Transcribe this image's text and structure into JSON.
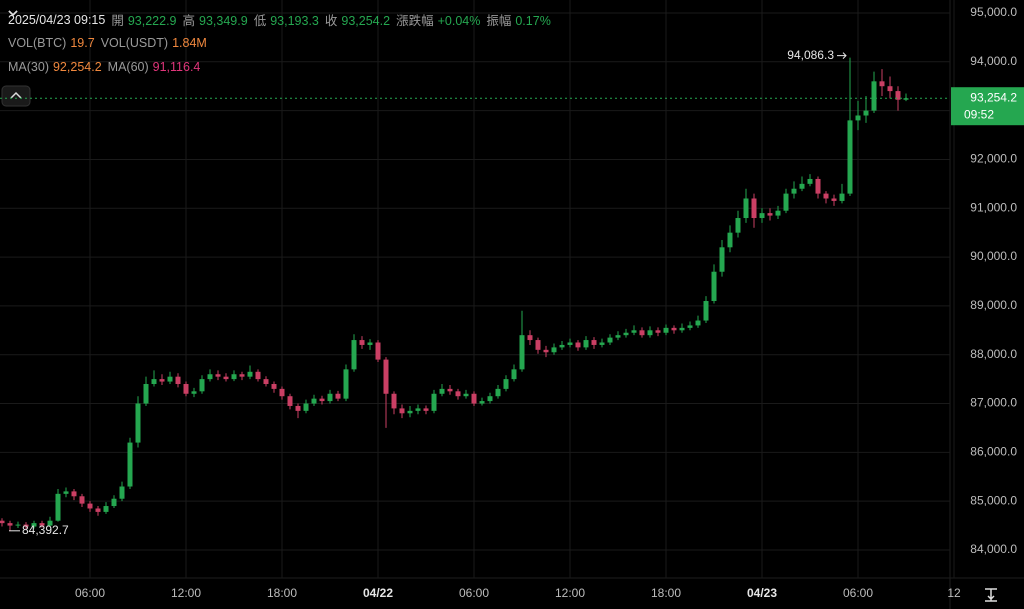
{
  "chart_data": {
    "type": "candlestick",
    "legend_rows": [
      {
        "title": "2025/04/23 09:15",
        "items": [
          {
            "label": "開",
            "value": "93,222.9",
            "color": "#25a750"
          },
          {
            "label": "高",
            "value": "93,349.9",
            "color": "#25a750"
          },
          {
            "label": "低",
            "value": "93,193.3",
            "color": "#25a750"
          },
          {
            "label": "收",
            "value": "93,254.2",
            "color": "#25a750"
          },
          {
            "label": "漲跌幅",
            "value": "+0.04%",
            "color": "#25a750"
          },
          {
            "label": "振幅",
            "value": "0.17%",
            "color": "#25a750"
          }
        ]
      },
      {
        "items": [
          {
            "label": "VOL(BTC)",
            "value": "19.7",
            "color": "#f0883e"
          },
          {
            "label": "VOL(USDT)",
            "value": "1.84M",
            "color": "#f0883e"
          }
        ]
      },
      {
        "items": [
          {
            "label": "MA(30)",
            "value": "92,254.2",
            "color": "#f0883e"
          },
          {
            "label": "MA(60)",
            "value": "91,116.4",
            "color": "#e0357a"
          }
        ]
      }
    ],
    "up_color": "#25a750",
    "down_color": "#ca3f64",
    "grid": true,
    "categories": [
      null,
      null,
      null,
      null,
      null,
      null,
      null,
      null,
      null,
      null,
      null,
      "06:00",
      null,
      null,
      null,
      null,
      null,
      null,
      null,
      null,
      null,
      null,
      null,
      "12:00",
      null,
      null,
      null,
      null,
      null,
      null,
      null,
      null,
      null,
      null,
      null,
      "18:00",
      null,
      null,
      null,
      null,
      null,
      null,
      null,
      null,
      null,
      null,
      null,
      "04/22",
      null,
      null,
      null,
      null,
      null,
      null,
      null,
      null,
      null,
      null,
      null,
      "06:00",
      null,
      null,
      null,
      null,
      null,
      null,
      null,
      null,
      null,
      null,
      null,
      "12:00",
      null,
      null,
      null,
      null,
      null,
      null,
      null,
      null,
      null,
      null,
      null,
      "18:00",
      null,
      null,
      null,
      null,
      null,
      null,
      null,
      null,
      null,
      null,
      null,
      "04/23",
      null,
      null,
      null,
      null,
      null,
      null,
      null,
      null,
      null,
      null,
      null,
      "06:00",
      null,
      null,
      null,
      null,
      null,
      null,
      null,
      null,
      null,
      null,
      null,
      "12"
    ],
    "open": [
      84600,
      84550,
      84500,
      84520,
      84480,
      84550,
      84500,
      84600,
      85150,
      85200,
      85100,
      84950,
      84850,
      84780,
      84900,
      85050,
      85300,
      86200,
      87000,
      87400,
      87500,
      87450,
      87550,
      87400,
      87200,
      87250,
      87500,
      87600,
      87550,
      87500,
      87600,
      87550,
      87650,
      87500,
      87400,
      87300,
      87150,
      86950,
      86850,
      87000,
      87100,
      87050,
      87200,
      87100,
      87700,
      88300,
      88200,
      88250,
      87900,
      87200,
      86900,
      86800,
      86850,
      86900,
      86850,
      87200,
      87300,
      87250,
      87150,
      87200,
      87000,
      87050,
      87150,
      87300,
      87500,
      87700,
      88400,
      88300,
      88100,
      88050,
      88150,
      88200,
      88250,
      88150,
      88300,
      88200,
      88250,
      88350,
      88400,
      88450,
      88500,
      88400,
      88500,
      88450,
      88550,
      88500,
      88550,
      88600,
      88700,
      89100,
      89700,
      90200,
      90500,
      90800,
      91200,
      90800,
      90900,
      90850,
      90950,
      91300,
      91400,
      91500,
      91600,
      91300,
      91200,
      91150,
      91300,
      92800,
      92900,
      93000,
      93600,
      93500,
      93400,
      93222.9,
      null,
      null,
      null,
      null,
      null,
      null
    ],
    "high": [
      84650,
      84600,
      84580,
      84570,
      84600,
      84600,
      84680,
      85250,
      85280,
      85250,
      85150,
      85000,
      84900,
      84980,
      85120,
      85400,
      86300,
      87150,
      87550,
      87680,
      87600,
      87650,
      87620,
      87450,
      87320,
      87580,
      87700,
      87680,
      87620,
      87680,
      87650,
      87780,
      87700,
      87560,
      87450,
      87350,
      87200,
      87000,
      87080,
      87180,
      87160,
      87280,
      87260,
      87800,
      88420,
      88380,
      88320,
      88300,
      87950,
      87250,
      86980,
      86950,
      86980,
      86960,
      87280,
      87400,
      87380,
      87300,
      87280,
      87250,
      87120,
      87220,
      87380,
      87580,
      87800,
      88900,
      88500,
      88350,
      88180,
      88230,
      88280,
      88330,
      88300,
      88380,
      88360,
      88330,
      88420,
      88480,
      88530,
      88600,
      88560,
      88580,
      88560,
      88620,
      88600,
      88640,
      88680,
      88800,
      89200,
      89850,
      90350,
      90650,
      90950,
      91400,
      91300,
      91000,
      91000,
      91050,
      91400,
      91550,
      91650,
      91700,
      91650,
      91350,
      91280,
      91500,
      94086.3,
      93200,
      93300,
      93800,
      93850,
      93700,
      93500,
      93349.9,
      null,
      null,
      null,
      null,
      null,
      null
    ],
    "low": [
      84480,
      84392.7,
      84450,
      84430,
      84440,
      84460,
      84470,
      84580,
      85080,
      85020,
      84880,
      84780,
      84700,
      84740,
      84860,
      85000,
      85250,
      86100,
      86950,
      87350,
      87380,
      87400,
      87330,
      87150,
      87130,
      87200,
      87450,
      87480,
      87450,
      87460,
      87480,
      87500,
      87450,
      87350,
      87220,
      87080,
      86880,
      86700,
      86800,
      86950,
      86980,
      87000,
      87050,
      87050,
      87650,
      88120,
      88100,
      87850,
      86500,
      86780,
      86700,
      86720,
      86780,
      86780,
      86800,
      87150,
      87180,
      87080,
      87100,
      86950,
      86960,
      87000,
      87100,
      87250,
      87450,
      87650,
      88200,
      88020,
      87950,
      88000,
      88100,
      88150,
      88080,
      88100,
      88120,
      88150,
      88200,
      88300,
      88350,
      88400,
      88350,
      88350,
      88380,
      88400,
      88430,
      88450,
      88500,
      88550,
      88650,
      89050,
      89600,
      90100,
      90400,
      90700,
      90600,
      90700,
      90750,
      90780,
      90900,
      91200,
      91350,
      91450,
      91200,
      91100,
      91050,
      91100,
      91250,
      92600,
      92750,
      92950,
      93300,
      93250,
      93000,
      93193.3,
      null,
      null,
      null,
      null,
      null,
      null
    ],
    "close": [
      84550,
      84500,
      84520,
      84480,
      84550,
      84500,
      84600,
      85150,
      85200,
      85100,
      84950,
      84850,
      84780,
      84900,
      85050,
      85300,
      86200,
      87000,
      87400,
      87500,
      87450,
      87550,
      87400,
      87200,
      87250,
      87500,
      87600,
      87550,
      87500,
      87600,
      87550,
      87650,
      87500,
      87400,
      87300,
      87150,
      86950,
      86850,
      87000,
      87100,
      87050,
      87200,
      87100,
      87700,
      88300,
      88200,
      88250,
      87900,
      87200,
      86900,
      86800,
      86850,
      86900,
      86850,
      87200,
      87300,
      87250,
      87150,
      87200,
      87000,
      87050,
      87150,
      87300,
      87500,
      87700,
      88400,
      88300,
      88100,
      88050,
      88150,
      88200,
      88250,
      88150,
      88300,
      88200,
      88250,
      88350,
      88400,
      88450,
      88500,
      88400,
      88500,
      88450,
      88550,
      88500,
      88550,
      88600,
      88700,
      89100,
      89700,
      90200,
      90500,
      90800,
      91200,
      90800,
      90900,
      90850,
      90950,
      91300,
      91400,
      91500,
      91600,
      91300,
      91200,
      91150,
      91300,
      92800,
      92900,
      93000,
      93600,
      93500,
      93400,
      93222.9,
      93254.2,
      null,
      null,
      null,
      null,
      null,
      null
    ],
    "ylim": [
      83426,
      95266
    ],
    "yticks": [
      {
        "value": 84000,
        "label": "84,000.0"
      },
      {
        "value": 85000,
        "label": "85,000.0"
      },
      {
        "value": 86000,
        "label": "86,000.0"
      },
      {
        "value": 87000,
        "label": "87,000.0"
      },
      {
        "value": 88000,
        "label": "88,000.0"
      },
      {
        "value": 89000,
        "label": "89,000.0"
      },
      {
        "value": 90000,
        "label": "90,000.0"
      },
      {
        "value": 91000,
        "label": "91,000.0"
      },
      {
        "value": 92000,
        "label": "92,000.0"
      },
      {
        "value": 93000,
        "label": "93,000.0"
      },
      {
        "value": 94000,
        "label": "94,000.0"
      },
      {
        "value": 95000,
        "label": "95,000.0"
      }
    ],
    "high_label": {
      "value": 94086.3,
      "label": "94,086.3"
    },
    "low_label": {
      "value": 84392.7,
      "label": "84,392.7"
    },
    "last_price": {
      "value": 93254.2,
      "label": "93,254.2",
      "countdown": "09:52"
    }
  }
}
